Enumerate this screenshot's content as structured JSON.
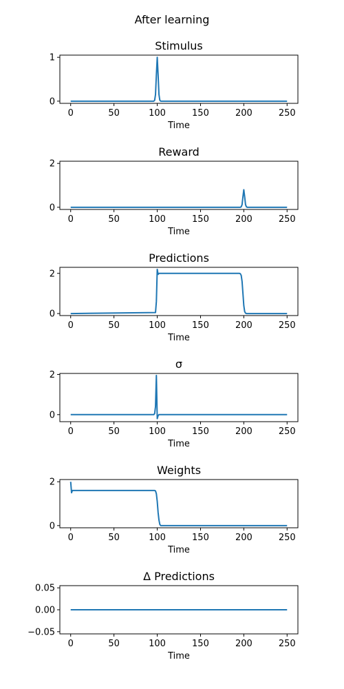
{
  "figure": {
    "title": "After learning"
  },
  "chart_data": [
    {
      "type": "line",
      "title": "Stimulus",
      "xlabel": "Time",
      "ylabel": "",
      "xlim": [
        -12.5,
        262.5
      ],
      "ylim": [
        -0.05,
        1.05
      ],
      "xticks": [
        0,
        50,
        100,
        150,
        200,
        250
      ],
      "yticks": [
        0,
        1
      ],
      "series": [
        {
          "color": "#1f77b4",
          "x": [
            0,
            96,
            97,
            98,
            99,
            100,
            101,
            102,
            103,
            104,
            250
          ],
          "y": [
            0,
            0,
            0.02,
            0.15,
            0.6,
            1.0,
            0.6,
            0.15,
            0.02,
            0,
            0
          ]
        }
      ]
    },
    {
      "type": "line",
      "title": "Reward",
      "xlabel": "Time",
      "ylabel": "",
      "xlim": [
        -12.5,
        262.5
      ],
      "ylim": [
        -0.1,
        2.1
      ],
      "xticks": [
        0,
        50,
        100,
        150,
        200,
        250
      ],
      "yticks": [
        0,
        2
      ],
      "series": [
        {
          "color": "#1f77b4",
          "x": [
            0,
            196,
            197,
            198,
            199,
            200,
            201,
            202,
            203,
            204,
            250
          ],
          "y": [
            0,
            0,
            0.02,
            0.12,
            0.48,
            0.8,
            0.48,
            0.12,
            0.02,
            0,
            0
          ]
        }
      ]
    },
    {
      "type": "line",
      "title": "Predictions",
      "xlabel": "Time",
      "ylabel": "",
      "xlim": [
        -12.5,
        262.5
      ],
      "ylim": [
        -0.1,
        2.3
      ],
      "xticks": [
        0,
        50,
        100,
        150,
        200,
        250
      ],
      "yticks": [
        0,
        2
      ],
      "series": [
        {
          "color": "#1f77b4",
          "x": [
            0,
            98,
            99,
            100,
            101,
            102,
            103,
            195,
            196,
            197,
            198,
            199,
            200,
            201,
            202,
            203,
            250
          ],
          "y": [
            0,
            0.05,
            0.6,
            2.2,
            1.95,
            2.0,
            2.0,
            2.0,
            1.98,
            1.9,
            1.6,
            1.0,
            0.4,
            0.1,
            0.02,
            0,
            0
          ]
        }
      ]
    },
    {
      "type": "line",
      "title": "σ",
      "xlabel": "Time",
      "ylabel": "",
      "xlim": [
        -12.5,
        262.5
      ],
      "ylim": [
        -0.35,
        2.05
      ],
      "xticks": [
        0,
        50,
        100,
        150,
        200,
        250
      ],
      "yticks": [
        0,
        2
      ],
      "series": [
        {
          "color": "#1f77b4",
          "x": [
            0,
            96,
            97,
            98,
            99,
            100,
            101,
            102,
            103,
            250
          ],
          "y": [
            0,
            0,
            0.05,
            0.4,
            1.95,
            -0.2,
            -0.05,
            0,
            0,
            0
          ]
        }
      ]
    },
    {
      "type": "line",
      "title": "Weights",
      "xlabel": "Time",
      "ylabel": "",
      "xlim": [
        -12.5,
        262.5
      ],
      "ylim": [
        -0.1,
        2.1
      ],
      "xticks": [
        0,
        50,
        100,
        150,
        200,
        250
      ],
      "yticks": [
        0,
        2
      ],
      "series": [
        {
          "color": "#1f77b4",
          "x": [
            0,
            1,
            2,
            97,
            98,
            99,
            100,
            101,
            102,
            103,
            104,
            250
          ],
          "y": [
            2.0,
            1.5,
            1.6,
            1.6,
            1.58,
            1.45,
            1.1,
            0.6,
            0.25,
            0.05,
            0,
            0
          ]
        }
      ]
    },
    {
      "type": "line",
      "title": "Δ Predictions",
      "xlabel": "Time",
      "ylabel": "",
      "xlim": [
        -12.5,
        262.5
      ],
      "ylim": [
        -0.055,
        0.055
      ],
      "xticks": [
        0,
        50,
        100,
        150,
        200,
        250
      ],
      "yticks": [
        -0.05,
        0.0,
        0.05
      ],
      "ytick_labels": [
        "−0.05",
        "0.00",
        "0.05"
      ],
      "series": [
        {
          "color": "#1f77b4",
          "x": [
            0,
            250
          ],
          "y": [
            0,
            0
          ]
        }
      ]
    }
  ]
}
